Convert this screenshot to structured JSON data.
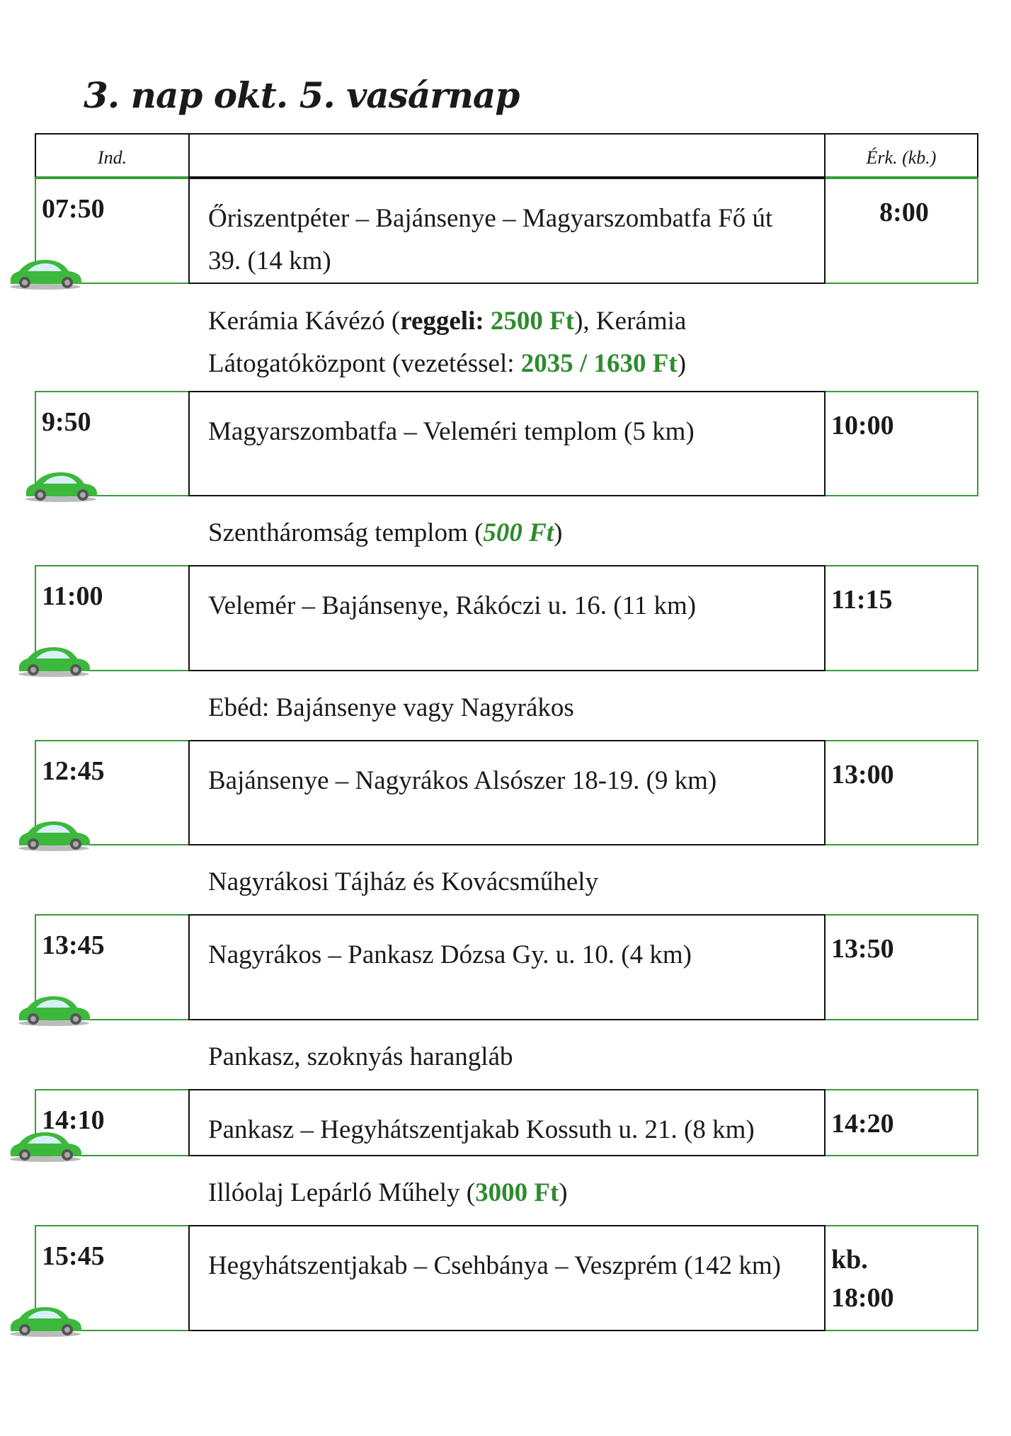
{
  "title": "3. nap okt. 5. vasárnap",
  "header": {
    "departure": "Ind.",
    "middle": "",
    "arrival": "Érk. (kb.)"
  },
  "colors": {
    "green": "#2e8b2e",
    "border_green": "#3a9a3a"
  },
  "legs": [
    {
      "dep": "07:50",
      "route": "Őriszentpéter – Bajánsenye – Magyarszombatfa Fő út 39. (14 km)",
      "arr": "8:00",
      "icon": "car-icon"
    },
    {
      "dep": "9:50",
      "route": "Magyarszombatfa – Veleméri templom (5 km)",
      "arr": "10:00",
      "icon": "car-icon"
    },
    {
      "dep": "11:00",
      "route": "Velemér – Bajánsenye, Rákóczi u. 16. (11 km)",
      "arr": "11:15",
      "icon": "car-icon"
    },
    {
      "dep": "12:45",
      "route": "Bajánsenye – Nagyrákos Alsószer 18-19. (9 km)",
      "arr": "13:00",
      "icon": "car-icon"
    },
    {
      "dep": "13:45",
      "route": "Nagyrákos – Pankasz Dózsa Gy. u. 10. (4 km)",
      "arr": "13:50",
      "icon": "car-icon"
    },
    {
      "dep": "14:10",
      "route": "Pankasz – Hegyhátszentjakab Kossuth u. 21. (8 km)",
      "arr": "14:20",
      "icon": "car-icon"
    },
    {
      "dep": "15:45",
      "route": "Hegyhátszentjakab – Csehbánya – Veszprém (142 km)",
      "arr": "kb. 18:00",
      "icon": "car-icon"
    }
  ],
  "notes": {
    "n1": {
      "a": "Kerámia Kávézó (",
      "b": "reggeli:",
      "c": " ",
      "d": "2500 Ft",
      "e": "), Kerámia Látogatóközpont (vezetéssel: ",
      "f": "2035 / 1630 Ft",
      "g": ")"
    },
    "n2": {
      "a": "Szentháromság templom (",
      "b": "500 Ft",
      "c": ")"
    },
    "n3": {
      "a": "Ebéd: Bajánsenye vagy Nagyrákos"
    },
    "n4": {
      "a": "Nagyrákosi Tájház és Kovácsműhely"
    },
    "n5": {
      "a": "Pankasz, szoknyás harangláb"
    },
    "n6": {
      "a": "Illóolaj Lepárló Műhely (",
      "b": "3000 Ft",
      "c": ")"
    }
  }
}
